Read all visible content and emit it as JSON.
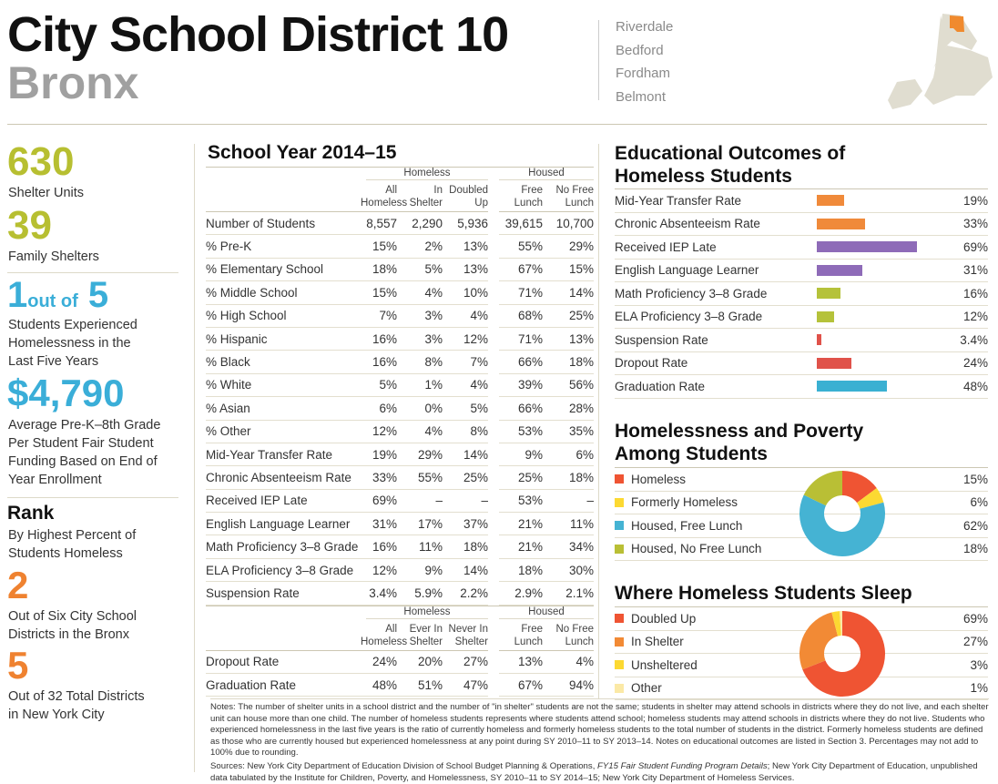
{
  "header": {
    "title": "City School District 10",
    "borough": "Bronx",
    "neighborhoods": [
      "Riverdale",
      "Bedford",
      "Fordham",
      "Belmont"
    ]
  },
  "map": {
    "highlight_color": "#f08a2e",
    "land_color": "#e0ddd0"
  },
  "stats": {
    "shelter_units": {
      "value": "630",
      "label": "Shelter Units"
    },
    "family_shelters": {
      "value": "39",
      "label": "Family Shelters"
    },
    "ratio": {
      "num": "1",
      "mid": "out of",
      "den": "5",
      "label_lines": [
        "Students Experienced",
        "Homelessness in the",
        "Last Five Years"
      ]
    },
    "funding": {
      "value": "$4,790",
      "label_lines": [
        "Average Pre-K–8th Grade",
        "Per Student Fair Student",
        "Funding Based on End of",
        "Year Enrollment"
      ]
    },
    "rank": {
      "title": "Rank",
      "label_lines": [
        "By Highest Percent of",
        "Students Homeless"
      ]
    },
    "rank_bronx": {
      "value": "2",
      "label_lines": [
        "Out of Six City School",
        "Districts in the Bronx"
      ]
    },
    "rank_city": {
      "value": "5",
      "label_lines": [
        "Out of 32 Total Districts",
        "in New York City"
      ]
    }
  },
  "table": {
    "title": "School Year 2014–15",
    "group_homeless": "Homeless",
    "group_housed": "Housed",
    "columns": [
      [
        "All",
        "Homeless"
      ],
      [
        "In",
        "Shelter"
      ],
      [
        "Doubled",
        "Up"
      ],
      [
        "Free",
        "Lunch"
      ],
      [
        "No Free",
        "Lunch"
      ]
    ],
    "rows": [
      [
        "Number of Students",
        "8,557",
        "2,290",
        "5,936",
        "39,615",
        "10,700"
      ],
      [
        "% Pre-K",
        "15%",
        "2%",
        "13%",
        "55%",
        "29%"
      ],
      [
        "% Elementary School",
        "18%",
        "5%",
        "13%",
        "67%",
        "15%"
      ],
      [
        "% Middle School",
        "15%",
        "4%",
        "10%",
        "71%",
        "14%"
      ],
      [
        "% High School",
        "7%",
        "3%",
        "4%",
        "68%",
        "25%"
      ],
      [
        "% Hispanic",
        "16%",
        "3%",
        "12%",
        "71%",
        "13%"
      ],
      [
        "% Black",
        "16%",
        "8%",
        "7%",
        "66%",
        "18%"
      ],
      [
        "% White",
        "5%",
        "1%",
        "4%",
        "39%",
        "56%"
      ],
      [
        "% Asian",
        "6%",
        "0%",
        "5%",
        "66%",
        "28%"
      ],
      [
        "% Other",
        "12%",
        "4%",
        "8%",
        "53%",
        "35%"
      ],
      [
        "Mid-Year Transfer Rate",
        "19%",
        "29%",
        "14%",
        "9%",
        "6%"
      ],
      [
        "Chronic Absenteeism Rate",
        "33%",
        "55%",
        "25%",
        "25%",
        "18%"
      ],
      [
        "Received IEP Late",
        "69%",
        "–",
        "–",
        "53%",
        "–"
      ],
      [
        "English Language Learner",
        "31%",
        "17%",
        "37%",
        "21%",
        "11%"
      ],
      [
        "Math Proficiency 3–8 Grade",
        "16%",
        "11%",
        "18%",
        "21%",
        "34%"
      ],
      [
        "ELA Proficiency 3–8 Grade",
        "12%",
        "9%",
        "14%",
        "18%",
        "30%"
      ],
      [
        "Suspension Rate",
        "3.4%",
        "5.9%",
        "2.2%",
        "2.9%",
        "2.1%"
      ]
    ],
    "columns2": [
      [
        "All",
        "Homeless"
      ],
      [
        "Ever In",
        "Shelter"
      ],
      [
        "Never In",
        "Shelter"
      ],
      [
        "Free",
        "Lunch"
      ],
      [
        "No Free",
        "Lunch"
      ]
    ],
    "rows2": [
      [
        "Dropout Rate",
        "24%",
        "20%",
        "27%",
        "13%",
        "4%"
      ],
      [
        "Graduation Rate",
        "48%",
        "51%",
        "47%",
        "67%",
        "94%"
      ]
    ]
  },
  "outcomes": {
    "title_lines": [
      "Educational Outcomes of",
      "Homeless Students"
    ],
    "items": [
      {
        "label": "Mid-Year Transfer Rate",
        "value": 19,
        "text": "19%",
        "color": "#f08a3a"
      },
      {
        "label": "Chronic Absenteeism Rate",
        "value": 33,
        "text": "33%",
        "color": "#f08a3a"
      },
      {
        "label": "Received IEP Late",
        "value": 69,
        "text": "69%",
        "color": "#8e6bb8"
      },
      {
        "label": "English Language Learner",
        "value": 31,
        "text": "31%",
        "color": "#8e6bb8"
      },
      {
        "label": "Math Proficiency 3–8 Grade",
        "value": 16,
        "text": "16%",
        "color": "#b5c23a"
      },
      {
        "label": "ELA Proficiency 3–8 Grade",
        "value": 12,
        "text": "12%",
        "color": "#b5c23a"
      },
      {
        "label": "Suspension Rate",
        "value": 3.4,
        "text": "3.4%",
        "color": "#e0524a"
      },
      {
        "label": "Dropout Rate",
        "value": 24,
        "text": "24%",
        "color": "#e0524a"
      },
      {
        "label": "Graduation Rate",
        "value": 48,
        "text": "48%",
        "color": "#3ab0d2"
      }
    ]
  },
  "poverty": {
    "title_lines": [
      "Homelessness and Poverty",
      "Among Students"
    ],
    "items": [
      {
        "label": "Homeless",
        "value": 15,
        "text": "15%",
        "color": "#ef5433"
      },
      {
        "label": "Formerly Homeless",
        "value": 6,
        "text": "6%",
        "color": "#fcd932"
      },
      {
        "label": "Housed, Free Lunch",
        "value": 62,
        "text": "62%",
        "color": "#45b3d3"
      },
      {
        "label": "Housed, No Free Lunch",
        "value": 18,
        "text": "18%",
        "color": "#b9bf35"
      }
    ]
  },
  "sleep": {
    "title": "Where Homeless Students Sleep",
    "items": [
      {
        "label": "Doubled Up",
        "value": 69,
        "text": "69%",
        "color": "#ef5433"
      },
      {
        "label": "In Shelter",
        "value": 27,
        "text": "27%",
        "color": "#f28a35"
      },
      {
        "label": "Unsheltered",
        "value": 3,
        "text": "3%",
        "color": "#fcd932"
      },
      {
        "label": "Other",
        "value": 1,
        "text": "1%",
        "color": "#fbe9a6"
      }
    ]
  },
  "notes": {
    "notes": "Notes: The number of shelter units in a school district and the number of \"in shelter\" students are not the same; students in shelter may attend schools in districts where they do not live, and each shelter unit can house more than one child. The number of homeless students represents where students attend school; homeless students may attend schools in districts where they do not live. Students who experienced homelessness in the last five years is the ratio of currently homeless and formerly homeless students to the total number of students in the district. Formerly homeless students are defined as those who are currently housed but experienced homelessness at any point during SY 2010–11 to SY 2013–14. Notes on educational outcomes are listed in Section 3. Percentages may not add to 100% due to rounding.",
    "sources_a": "Sources: New York City Department of Education Division of School Budget Planning & Operations, ",
    "sources_italic": "FY15 Fair Student Funding Program Details",
    "sources_b": "; New York City Department of Education, unpublished data tabulated by the Institute for Children, Poverty, and Homelessness, SY 2010–11 to SY 2014–15; New York City Department of Homeless Services."
  }
}
